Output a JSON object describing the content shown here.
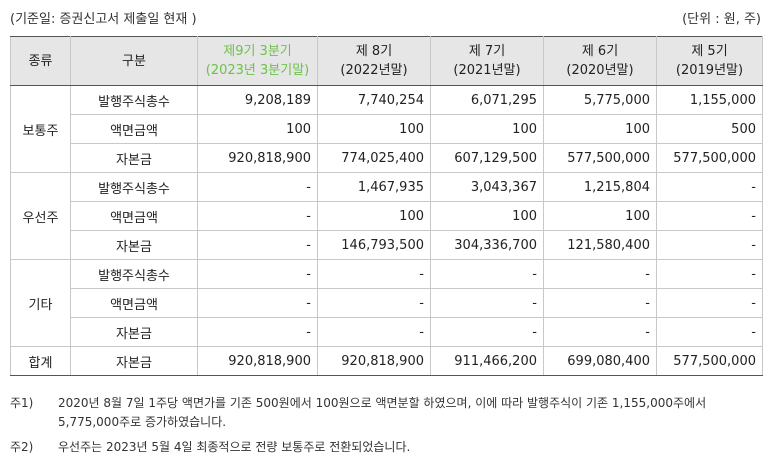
{
  "header": {
    "basis": "(기준일: 증권신고서 제출일 현재 )",
    "unit": "(단위 : 원, 주)"
  },
  "table": {
    "columns": [
      "종류",
      "구분",
      "제9기 3분기\n(2023년 3분기말)",
      "제 8기\n(2022년말)",
      "제 7기\n(2021년말)",
      "제 6기\n(2020년말)",
      "제 5기\n(2019년말)"
    ],
    "highlight_color": "#6cc24a",
    "groups": [
      {
        "name": "보통주",
        "rows": [
          {
            "label": "발행주식총수",
            "values": [
              "9,208,189",
              "7,740,254",
              "6,071,295",
              "5,775,000",
              "1,155,000"
            ]
          },
          {
            "label": "액면금액",
            "values": [
              "100",
              "100",
              "100",
              "100",
              "500"
            ]
          },
          {
            "label": "자본금",
            "values": [
              "920,818,900",
              "774,025,400",
              "607,129,500",
              "577,500,000",
              "577,500,000"
            ]
          }
        ]
      },
      {
        "name": "우선주",
        "rows": [
          {
            "label": "발행주식총수",
            "values": [
              "-",
              "1,467,935",
              "3,043,367",
              "1,215,804",
              "-"
            ]
          },
          {
            "label": "액면금액",
            "values": [
              "-",
              "100",
              "100",
              "100",
              "-"
            ]
          },
          {
            "label": "자본금",
            "values": [
              "-",
              "146,793,500",
              "304,336,700",
              "121,580,400",
              "-"
            ]
          }
        ]
      },
      {
        "name": "기타",
        "rows": [
          {
            "label": "발행주식총수",
            "values": [
              "-",
              "-",
              "-",
              "-",
              "-"
            ]
          },
          {
            "label": "액면금액",
            "values": [
              "-",
              "-",
              "-",
              "-",
              "-"
            ]
          },
          {
            "label": "자본금",
            "values": [
              "-",
              "-",
              "-",
              "-",
              "-"
            ]
          }
        ]
      },
      {
        "name": "합계",
        "rows": [
          {
            "label": "자본금",
            "values": [
              "920,818,900",
              "920,818,900",
              "911,466,200",
              "699,080,400",
              "577,500,000"
            ]
          }
        ]
      }
    ]
  },
  "notes": [
    {
      "label": "주1)",
      "text": "2020년 8월 7일 1주당 액면가를 기존 500원에서 100원으로 액면분할 하였으며, 이에 따라 발행주식이 기존 1,155,000주에서 5,775,000주로 증가하였습니다."
    },
    {
      "label": "주2)",
      "text": "우선주는 2023년 5월 4일 최종적으로 전량 보통주로 전환되었습니다."
    }
  ]
}
